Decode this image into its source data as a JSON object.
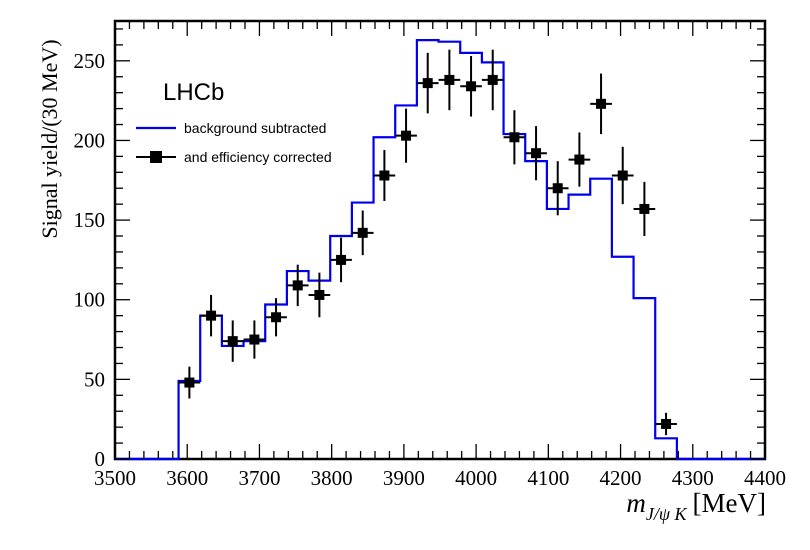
{
  "chart_data": {
    "type": "line",
    "experiment_label": "LHCb",
    "xlabel_main": "m",
    "xlabel_sub": "J/ψ K",
    "xlabel_unit": "[MeV]",
    "ylabel": "Signal yield/(30 MeV)",
    "xlim": [
      3500,
      4400
    ],
    "ylim": [
      0,
      275
    ],
    "x_ticks": [
      3500,
      3600,
      3700,
      3800,
      3900,
      4000,
      4100,
      4200,
      4300,
      4400
    ],
    "y_ticks": [
      0,
      50,
      100,
      150,
      200,
      250
    ],
    "bin_width": 30,
    "legend": {
      "position": "top-left",
      "entries": [
        "background subtracted",
        "and efficiency corrected"
      ]
    },
    "series": [
      {
        "name": "background subtracted",
        "style": "histogram",
        "color": "#0000ee",
        "bin_edges": [
          3500,
          3588,
          3618,
          3648,
          3678,
          3708,
          3738,
          3768,
          3798,
          3828,
          3858,
          3888,
          3918,
          3948,
          3978,
          4008,
          4038,
          4068,
          4098,
          4128,
          4158,
          4188,
          4218,
          4248,
          4278,
          4400
        ],
        "values": [
          0,
          49,
          90,
          71,
          74,
          97,
          118,
          112,
          140,
          161,
          202,
          222,
          263,
          262,
          255,
          249,
          204,
          187,
          157,
          166,
          176,
          127,
          101,
          13,
          0
        ]
      },
      {
        "name": "and efficiency corrected",
        "style": "points",
        "color": "#000000",
        "x": [
          3603,
          3633,
          3663,
          3693,
          3723,
          3753,
          3783,
          3813,
          3843,
          3873,
          3903,
          3933,
          3963,
          3993,
          4023,
          4053,
          4083,
          4113,
          4143,
          4173,
          4203,
          4233,
          4263
        ],
        "y": [
          48,
          90,
          74,
          75,
          89,
          109,
          103,
          125,
          142,
          178,
          203,
          236,
          238,
          234,
          238,
          202,
          192,
          170,
          188,
          223,
          178,
          157,
          22
        ],
        "yerr": [
          10,
          13,
          13,
          12,
          12,
          13,
          14,
          14,
          14,
          16,
          17,
          19,
          19,
          19,
          19,
          17,
          17,
          17,
          17,
          19,
          18,
          17,
          7
        ],
        "xerr": 15
      }
    ]
  }
}
